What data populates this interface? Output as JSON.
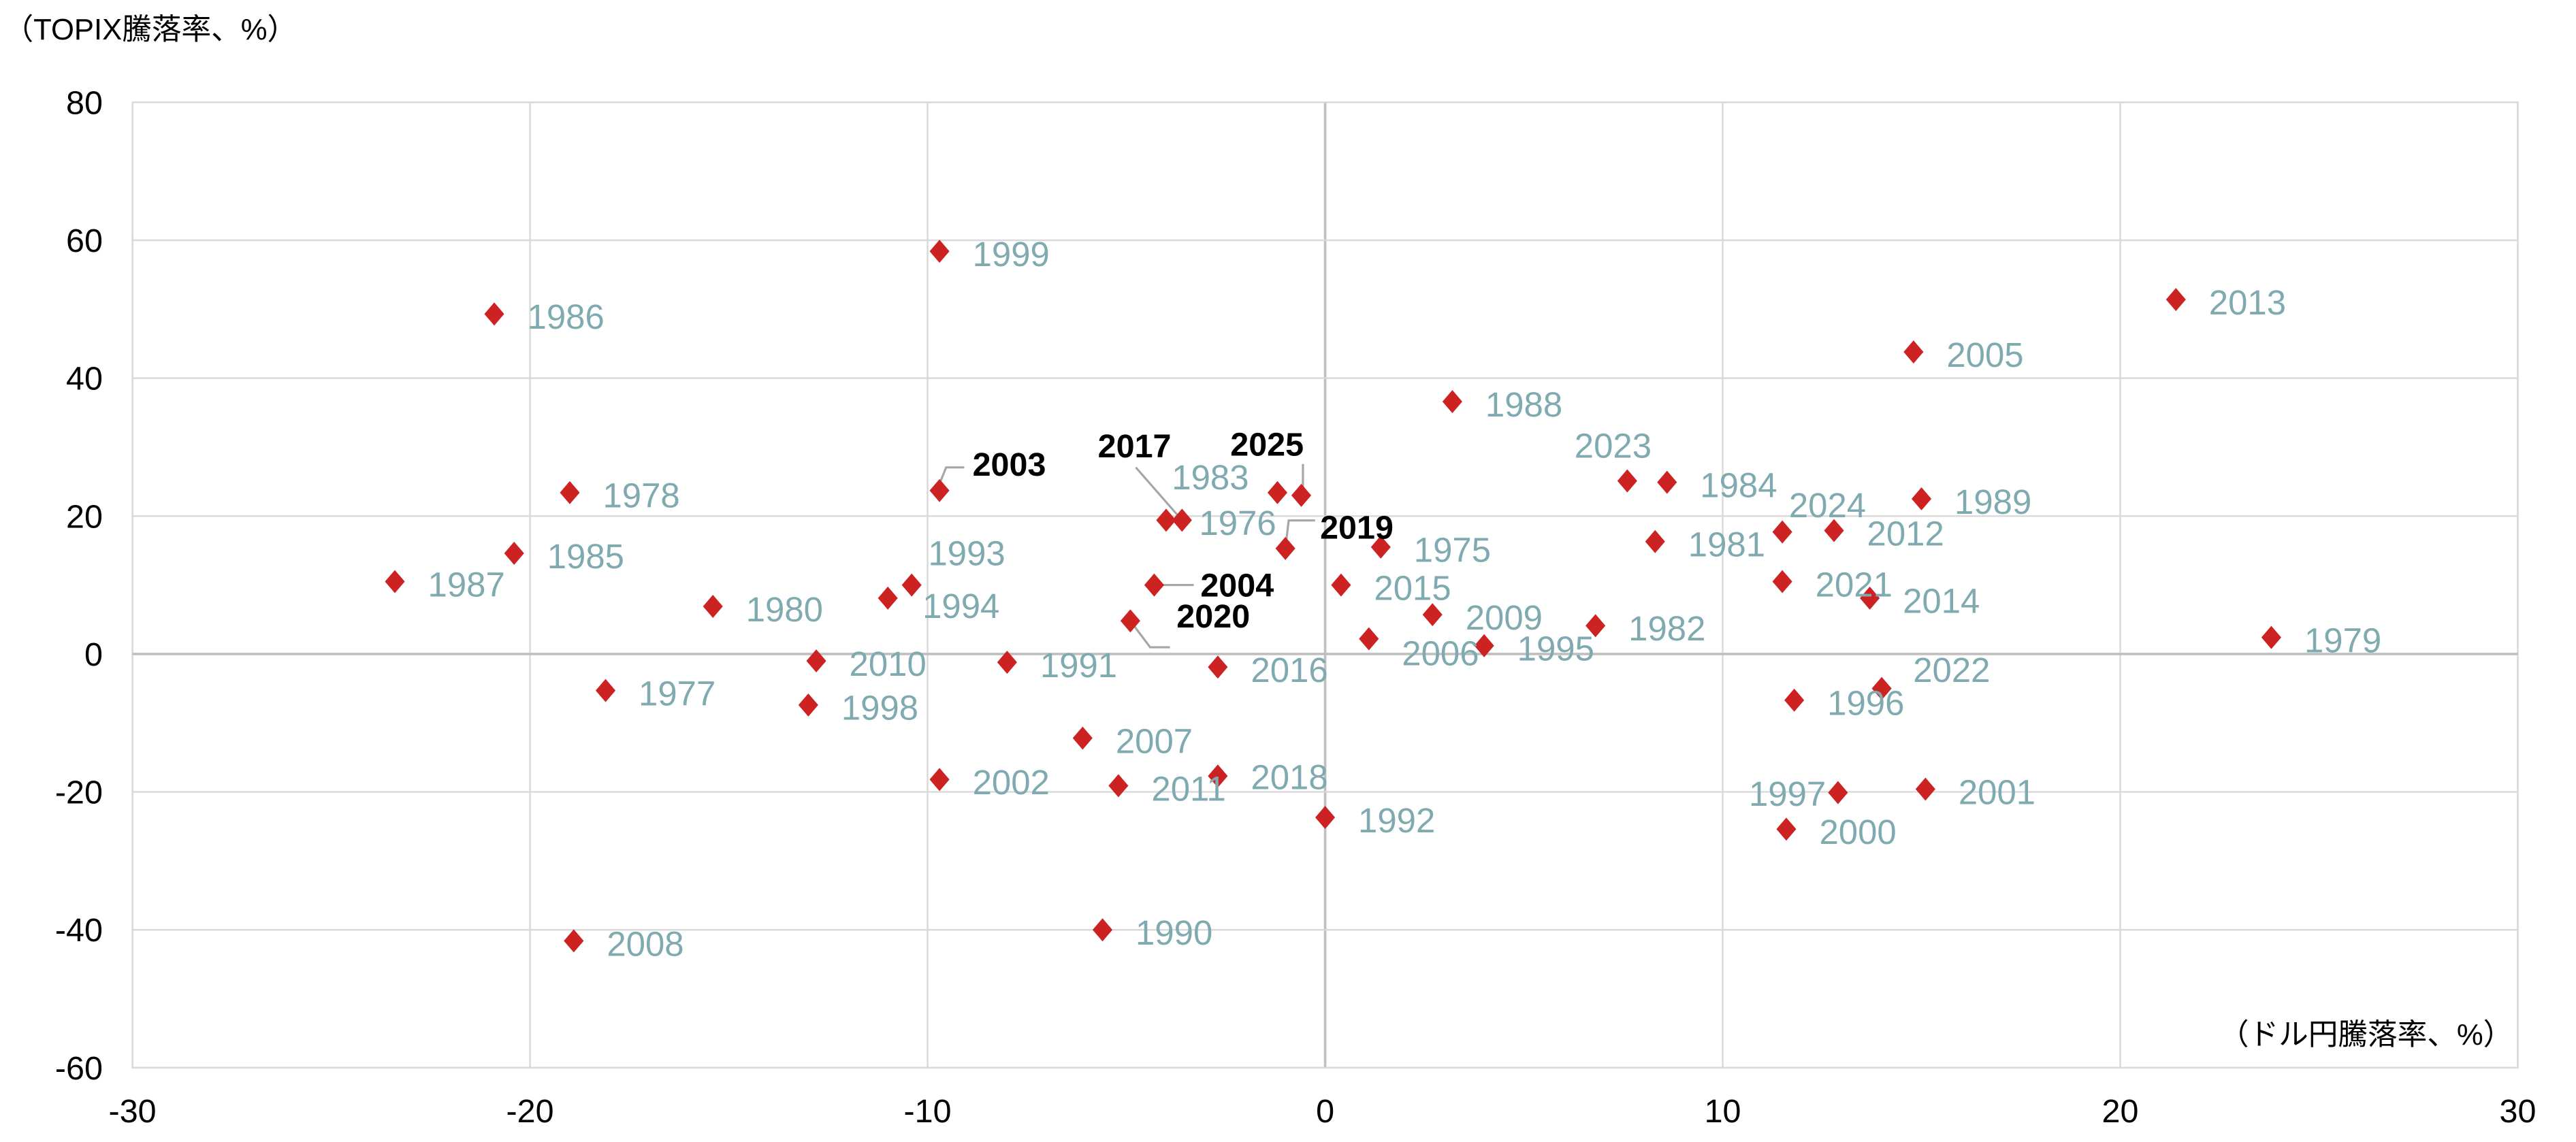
{
  "chart_data": {
    "type": "scatter",
    "title": "",
    "ylabel": "（TOPIX騰落率、%）",
    "xlabel": "（ドル円騰落率、%）",
    "xlim": [
      -30,
      30
    ],
    "ylim": [
      -60,
      80
    ],
    "xticks": [
      -30,
      -20,
      -10,
      0,
      10,
      20,
      30
    ],
    "yticks": [
      80,
      60,
      40,
      20,
      0,
      -20,
      -40,
      -60
    ],
    "grid": true,
    "marker": "diamond",
    "colors": {
      "marker": "#cc2222",
      "label": "#7faab0",
      "highlight_label": "#000000",
      "grid": "#d9d9d9",
      "zero_axis": "#bfbfbf"
    },
    "points": [
      {
        "label": "1975",
        "x": 1.4,
        "y": 15.5
      },
      {
        "label": "1976",
        "x": -4.0,
        "y": 19.4
      },
      {
        "label": "1977",
        "x": -18.1,
        "y": -5.3
      },
      {
        "label": "1978",
        "x": -19.0,
        "y": 23.4
      },
      {
        "label": "1979",
        "x": 23.8,
        "y": 2.4
      },
      {
        "label": "1980",
        "x": -15.4,
        "y": 6.9
      },
      {
        "label": "1981",
        "x": 8.3,
        "y": 16.3
      },
      {
        "label": "1982",
        "x": 6.8,
        "y": 4.1
      },
      {
        "label": "1983",
        "x": -1.2,
        "y": 23.4
      },
      {
        "label": "1984",
        "x": 8.6,
        "y": 24.9
      },
      {
        "label": "1985",
        "x": -20.4,
        "y": 14.6
      },
      {
        "label": "1986",
        "x": -20.9,
        "y": 49.3
      },
      {
        "label": "1987",
        "x": -23.4,
        "y": 10.5
      },
      {
        "label": "1988",
        "x": 3.2,
        "y": 36.6
      },
      {
        "label": "1989",
        "x": 15.0,
        "y": 22.5
      },
      {
        "label": "1990",
        "x": -5.6,
        "y": -40.0
      },
      {
        "label": "1991",
        "x": -8.0,
        "y": -1.2
      },
      {
        "label": "1992",
        "x": 0.0,
        "y": -23.7
      },
      {
        "label": "1993",
        "x": -10.4,
        "y": 10.0
      },
      {
        "label": "1994",
        "x": -11.0,
        "y": 8.1
      },
      {
        "label": "1995",
        "x": 4.0,
        "y": 1.2
      },
      {
        "label": "1996",
        "x": 11.8,
        "y": -6.7
      },
      {
        "label": "1997",
        "x": 12.9,
        "y": -20.1
      },
      {
        "label": "1998",
        "x": -13.0,
        "y": -7.4
      },
      {
        "label": "1999",
        "x": -9.7,
        "y": 58.4
      },
      {
        "label": "2000",
        "x": 11.6,
        "y": -25.4
      },
      {
        "label": "2001",
        "x": 15.1,
        "y": -19.6
      },
      {
        "label": "2002",
        "x": -9.7,
        "y": -18.2
      },
      {
        "label": "2003",
        "x": -9.7,
        "y": 23.7,
        "highlight": true
      },
      {
        "label": "2004",
        "x": -4.3,
        "y": 10.0,
        "highlight": true
      },
      {
        "label": "2005",
        "x": 14.8,
        "y": 43.8
      },
      {
        "label": "2006",
        "x": 1.1,
        "y": 2.2
      },
      {
        "label": "2007",
        "x": -6.1,
        "y": -12.2
      },
      {
        "label": "2008",
        "x": -18.9,
        "y": -41.6
      },
      {
        "label": "2009",
        "x": 2.7,
        "y": 5.7
      },
      {
        "label": "2010",
        "x": -12.8,
        "y": -1.0
      },
      {
        "label": "2011",
        "x": -5.2,
        "y": -19.1
      },
      {
        "label": "2012",
        "x": 12.8,
        "y": 17.9
      },
      {
        "label": "2013",
        "x": 21.4,
        "y": 51.4
      },
      {
        "label": "2014",
        "x": 13.7,
        "y": 8.1
      },
      {
        "label": "2015",
        "x": 0.4,
        "y": 10.0
      },
      {
        "label": "2016",
        "x": -2.7,
        "y": -1.9
      },
      {
        "label": "2017",
        "x": -3.6,
        "y": 19.4,
        "highlight": true
      },
      {
        "label": "2018",
        "x": -2.7,
        "y": -17.7
      },
      {
        "label": "2019",
        "x": -1.0,
        "y": 15.3,
        "highlight": true
      },
      {
        "label": "2020",
        "x": -4.9,
        "y": 4.8,
        "highlight": true
      },
      {
        "label": "2021",
        "x": 11.5,
        "y": 10.5
      },
      {
        "label": "2022",
        "x": 14.0,
        "y": -5.0
      },
      {
        "label": "2023",
        "x": 7.6,
        "y": 25.1
      },
      {
        "label": "2024",
        "x": 11.5,
        "y": 17.7
      },
      {
        "label": "2025",
        "x": -0.6,
        "y": 23.0,
        "highlight": true
      }
    ]
  }
}
